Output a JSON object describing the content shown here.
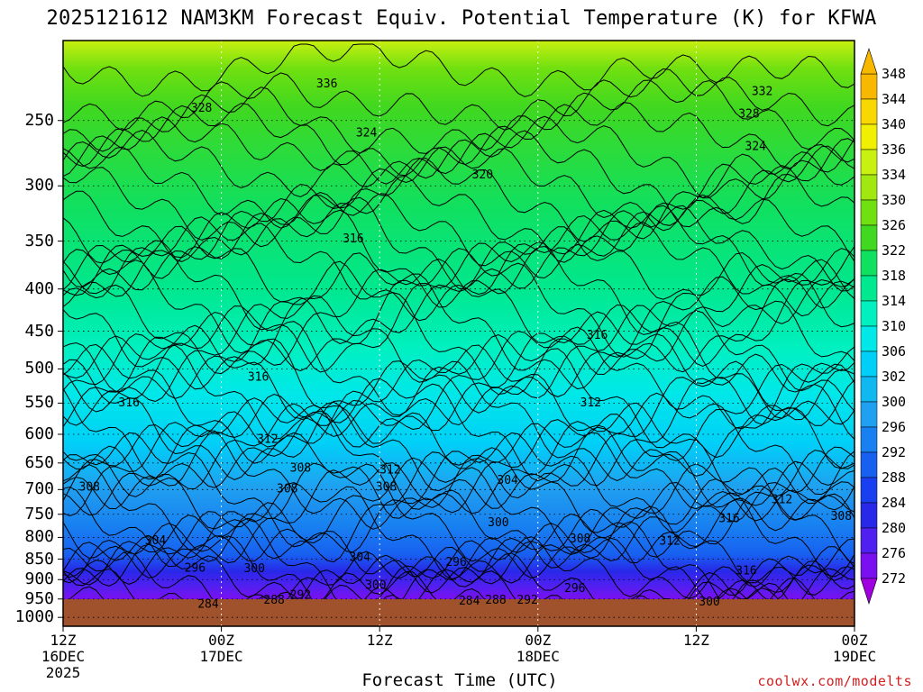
{
  "title": "2025121612 NAM3KM Forecast Equiv. Potential Temperature (K) for KFWA",
  "xlabel": "Forecast Time (UTC)",
  "credit": "coolwx.com/modelts",
  "chart_data": {
    "type": "heatmap",
    "variable": "Equivalent potential temperature (K)",
    "y_axis": {
      "unit": "hPa",
      "ticks": [
        250,
        300,
        350,
        400,
        450,
        500,
        550,
        600,
        650,
        700,
        750,
        800,
        850,
        900,
        950,
        1000
      ],
      "range": [
        200,
        1025
      ],
      "inverted": true
    },
    "x_axis": {
      "ticks": [
        {
          "l1": "12Z",
          "l2": "16DEC",
          "l3": "2025"
        },
        {
          "l1": "00Z",
          "l2": "17DEC",
          "l3": ""
        },
        {
          "l1": "12Z",
          "l2": "",
          "l3": ""
        },
        {
          "l1": "00Z",
          "l2": "18DEC",
          "l3": ""
        },
        {
          "l1": "12Z",
          "l2": "",
          "l3": ""
        },
        {
          "l1": "00Z",
          "l2": "19DEC",
          "l3": ""
        }
      ],
      "forecast_hours": [
        0,
        12,
        24,
        36,
        48,
        60
      ]
    },
    "colorbar": {
      "levels": [
        272,
        276,
        280,
        284,
        288,
        292,
        296,
        300,
        302,
        306,
        310,
        314,
        318,
        322,
        326,
        330,
        334,
        336,
        340,
        344,
        348
      ],
      "colors": [
        "#a000e0",
        "#7a10f0",
        "#5020f0",
        "#2828e8",
        "#1840f0",
        "#1860f0",
        "#1880f0",
        "#20a0f0",
        "#10b8f0",
        "#00d0f8",
        "#00e8e8",
        "#00f0c0",
        "#00e890",
        "#10e060",
        "#40d820",
        "#70e010",
        "#a0e810",
        "#c8f010",
        "#f0f000",
        "#f8d800",
        "#f8b800"
      ]
    },
    "contour_labels": [
      {
        "text": "336",
        "t": 20.0,
        "p": 225
      },
      {
        "text": "328",
        "t": 10.5,
        "p": 241
      },
      {
        "text": "332",
        "t": 53.0,
        "p": 230
      },
      {
        "text": "328",
        "t": 52.0,
        "p": 245
      },
      {
        "text": "324",
        "t": 23.0,
        "p": 258
      },
      {
        "text": "324",
        "t": 52.5,
        "p": 268
      },
      {
        "text": "320",
        "t": 31.8,
        "p": 290
      },
      {
        "text": "316",
        "t": 22.0,
        "p": 347
      },
      {
        "text": "316",
        "t": 40.5,
        "p": 454
      },
      {
        "text": "316",
        "t": 14.8,
        "p": 510
      },
      {
        "text": "316",
        "t": 5.0,
        "p": 548
      },
      {
        "text": "312",
        "t": 40.0,
        "p": 548
      },
      {
        "text": "312",
        "t": 15.5,
        "p": 607
      },
      {
        "text": "312",
        "t": 24.8,
        "p": 661
      },
      {
        "text": "312",
        "t": 54.5,
        "p": 718
      },
      {
        "text": "308",
        "t": 18.0,
        "p": 658
      },
      {
        "text": "308",
        "t": 2.0,
        "p": 693
      },
      {
        "text": "308",
        "t": 17.0,
        "p": 697
      },
      {
        "text": "308",
        "t": 24.5,
        "p": 693
      },
      {
        "text": "308",
        "t": 39.2,
        "p": 801
      },
      {
        "text": "308",
        "t": 59.0,
        "p": 752
      },
      {
        "text": "304",
        "t": 33.7,
        "p": 680
      },
      {
        "text": "304",
        "t": 7.0,
        "p": 805
      },
      {
        "text": "304",
        "t": 22.5,
        "p": 844
      },
      {
        "text": "300",
        "t": 33.0,
        "p": 766
      },
      {
        "text": "300",
        "t": 14.5,
        "p": 870
      },
      {
        "text": "300",
        "t": 23.7,
        "p": 912
      },
      {
        "text": "300",
        "t": 49.0,
        "p": 955
      },
      {
        "text": "296",
        "t": 10.0,
        "p": 869
      },
      {
        "text": "296",
        "t": 29.8,
        "p": 855
      },
      {
        "text": "296",
        "t": 38.8,
        "p": 920
      },
      {
        "text": "292",
        "t": 18.0,
        "p": 937
      },
      {
        "text": "292",
        "t": 35.2,
        "p": 951
      },
      {
        "text": "288",
        "t": 16.0,
        "p": 950
      },
      {
        "text": "288",
        "t": 32.8,
        "p": 951
      },
      {
        "text": "284",
        "t": 11.0,
        "p": 961
      },
      {
        "text": "284",
        "t": 30.8,
        "p": 953
      },
      {
        "text": "316",
        "t": 50.5,
        "p": 757
      },
      {
        "text": "316",
        "t": 51.8,
        "p": 876
      },
      {
        "text": "312",
        "t": 46.0,
        "p": 806
      }
    ]
  }
}
